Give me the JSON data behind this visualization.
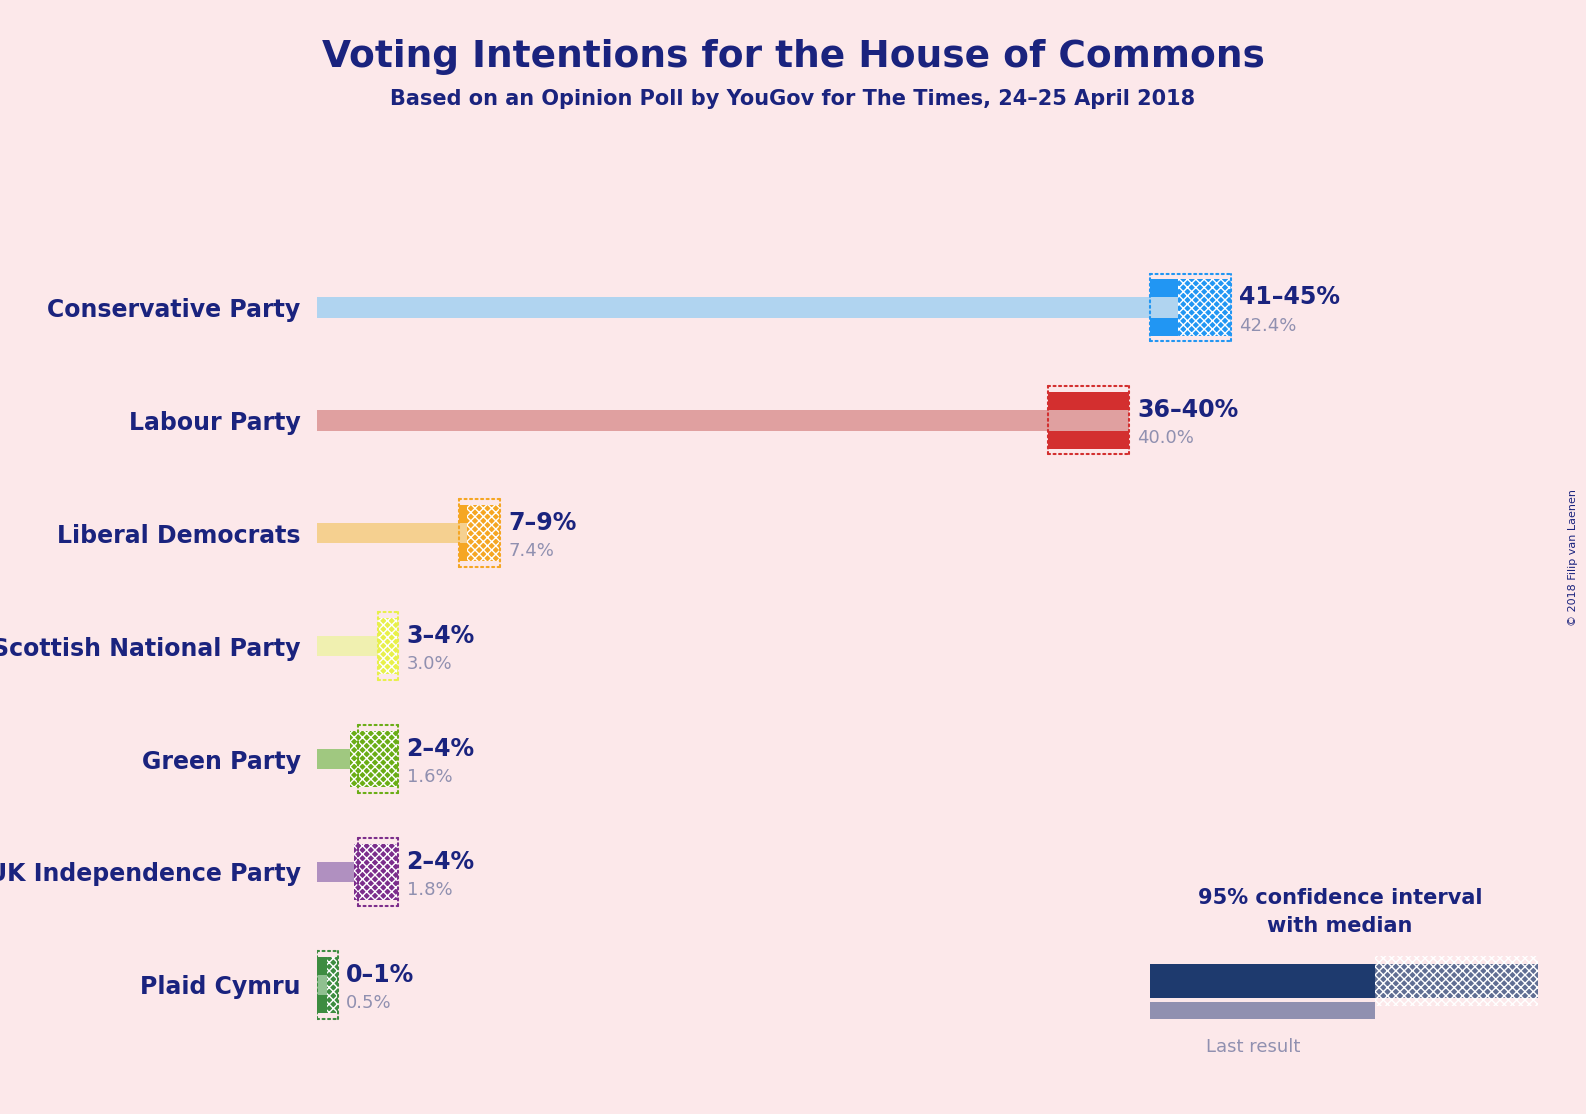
{
  "title": "Voting Intentions for the House of Commons",
  "subtitle": "Based on an Opinion Poll by YouGov for The Times, 24–25 April 2018",
  "copyright": "© 2018 Filip van Laenen",
  "background_color": "#fce8ea",
  "title_color": "#1a237e",
  "parties": [
    {
      "name": "Conservative Party",
      "median": 42.4,
      "ci_low": 41.0,
      "ci_high": 45.0,
      "last_result": 42.4,
      "label_range": "41–45%",
      "label_median": "42.4%",
      "bar_color": "#2196f3",
      "ci_band_color": "#90caf9",
      "last_color": "#b0d4f0"
    },
    {
      "name": "Labour Party",
      "median": 40.0,
      "ci_low": 36.0,
      "ci_high": 40.0,
      "last_result": 40.0,
      "label_range": "36–40%",
      "label_median": "40.0%",
      "bar_color": "#d32f2f",
      "ci_band_color": "#ef9a9a",
      "last_color": "#e0a0a0"
    },
    {
      "name": "Liberal Democrats",
      "median": 7.4,
      "ci_low": 7.0,
      "ci_high": 9.0,
      "last_result": 7.4,
      "label_range": "7–9%",
      "label_median": "7.4%",
      "bar_color": "#f5a623",
      "ci_band_color": "#ffe082",
      "last_color": "#f5d090"
    },
    {
      "name": "Scottish National Party",
      "median": 3.0,
      "ci_low": 3.0,
      "ci_high": 4.0,
      "last_result": 3.0,
      "label_range": "3–4%",
      "label_median": "3.0%",
      "bar_color": "#e8f04a",
      "ci_band_color": "#f9fbe7",
      "last_color": "#f0f0b0"
    },
    {
      "name": "Green Party",
      "median": 1.6,
      "ci_low": 2.0,
      "ci_high": 4.0,
      "last_result": 1.6,
      "label_range": "2–4%",
      "label_median": "1.6%",
      "bar_color": "#6aad16",
      "ci_band_color": "#c5e1a5",
      "last_color": "#a0c880"
    },
    {
      "name": "UK Independence Party",
      "median": 1.8,
      "ci_low": 2.0,
      "ci_high": 4.0,
      "last_result": 1.8,
      "label_range": "2–4%",
      "label_median": "1.8%",
      "bar_color": "#7b2d8b",
      "ci_band_color": "#ce93d8",
      "last_color": "#b090c0"
    },
    {
      "name": "Plaid Cymru",
      "median": 0.5,
      "ci_low": 0.0,
      "ci_high": 1.0,
      "last_result": 0.5,
      "label_range": "0–1%",
      "label_median": "0.5%",
      "bar_color": "#3d8c40",
      "ci_band_color": "#a5d6a7",
      "last_color": "#90c090"
    }
  ],
  "xmax": 50,
  "legend_text_1": "95% confidence interval",
  "legend_text_2": "with median",
  "legend_last_result": "Last result",
  "legend_bar_color": "#1e3a6e",
  "legend_last_color": "#9090b0"
}
